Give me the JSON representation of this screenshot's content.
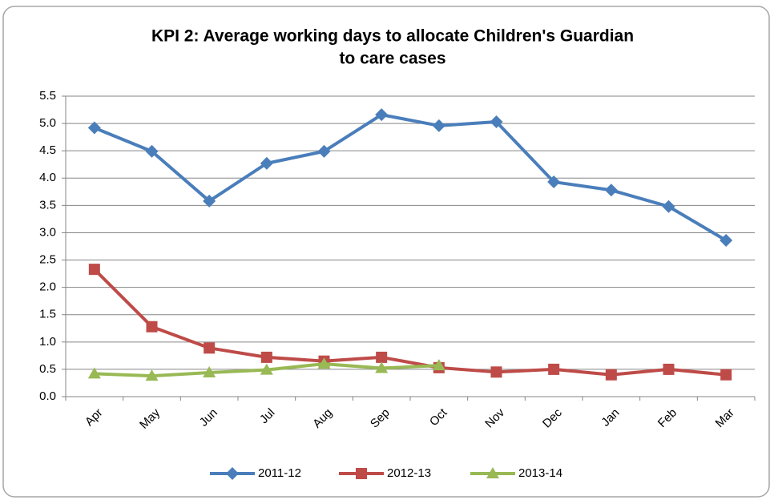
{
  "chart_data": {
    "type": "line",
    "title": [
      "KPI 2: Average working days to allocate Children's Guardian",
      "to care cases"
    ],
    "categories": [
      "Apr",
      "May",
      "Jun",
      "Jul",
      "Aug",
      "Sep",
      "Oct",
      "Nov",
      "Dec",
      "Jan",
      "Feb",
      "Mar"
    ],
    "series": [
      {
        "name": "2011-12",
        "color": "#4a7ebb",
        "marker": "diamond",
        "values": [
          4.92,
          4.49,
          3.58,
          4.27,
          4.49,
          5.16,
          4.96,
          5.03,
          3.93,
          3.78,
          3.48,
          2.86
        ]
      },
      {
        "name": "2012-13",
        "color": "#be4b48",
        "marker": "square",
        "values": [
          2.33,
          1.28,
          0.89,
          0.72,
          0.65,
          0.72,
          0.53,
          0.45,
          0.5,
          0.4,
          0.5,
          0.4
        ]
      },
      {
        "name": "2013-14",
        "color": "#98b954",
        "marker": "triangle",
        "values": [
          0.42,
          0.38,
          0.44,
          0.49,
          0.6,
          0.52,
          0.57,
          null,
          null,
          null,
          null,
          null
        ]
      }
    ],
    "ylim": [
      0,
      5.5
    ],
    "yticks": [
      {
        "value": 0,
        "label": "0.0"
      },
      0.5,
      {
        "value": 1,
        "label": "1.0"
      },
      1.5,
      {
        "value": 2,
        "label": "2.0"
      },
      2.5,
      {
        "value": 3,
        "label": "3.0"
      },
      3.5,
      {
        "value": 4,
        "label": "4.0"
      },
      4.5,
      {
        "value": 5,
        "label": "5.0"
      },
      5.5
    ],
    "grid": true,
    "legend": "bottom"
  }
}
